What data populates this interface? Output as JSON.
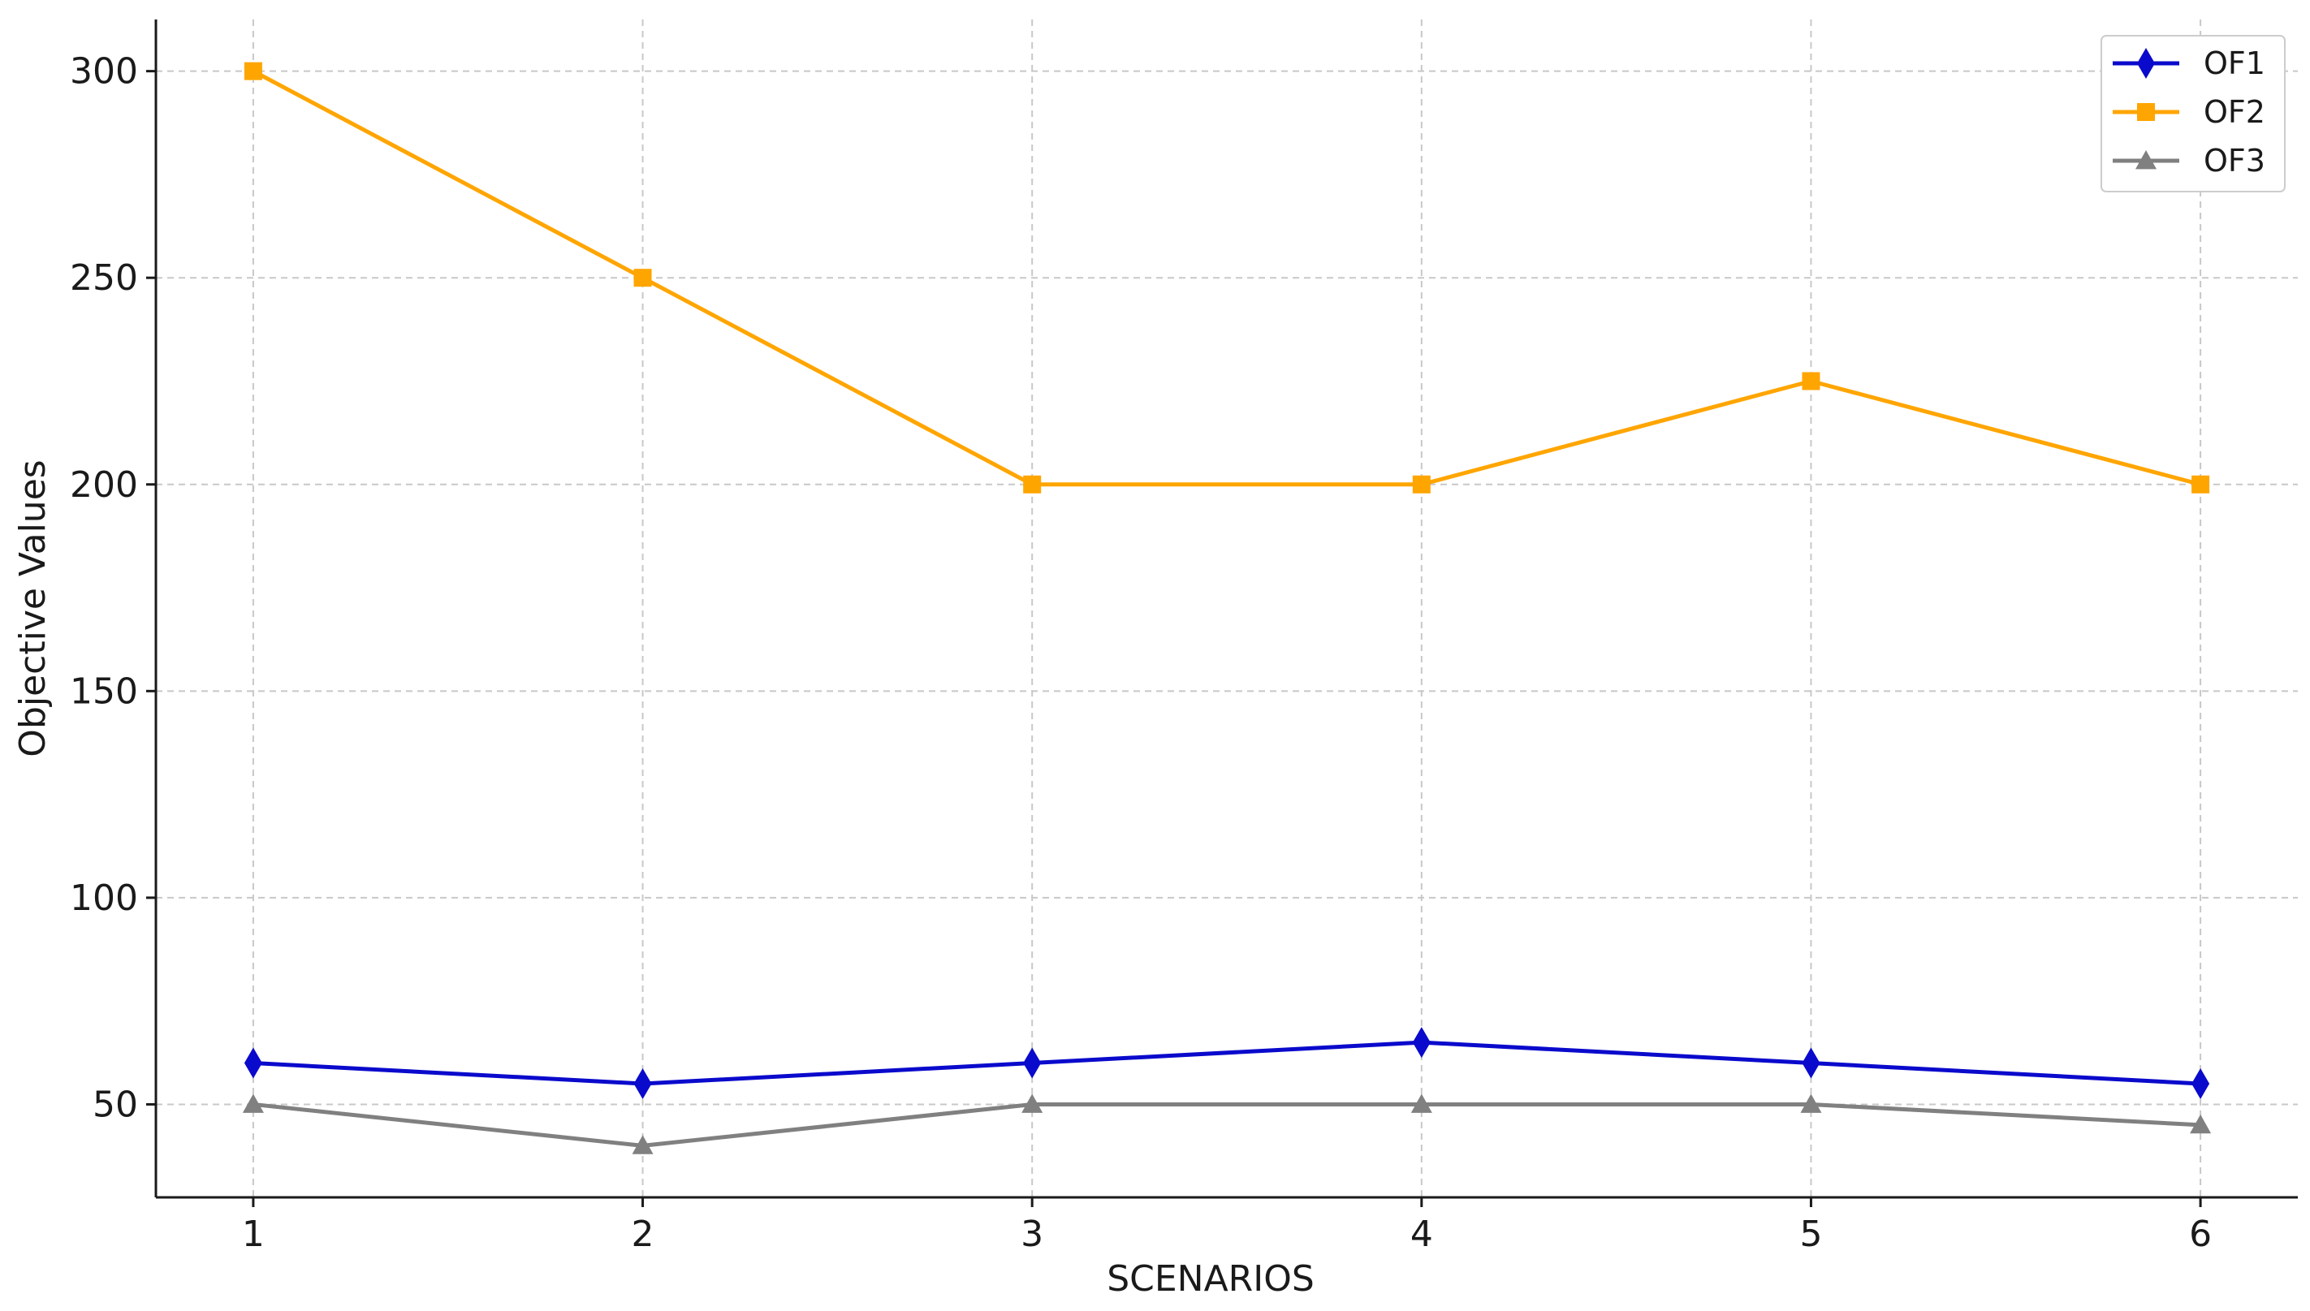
{
  "chart_data": {
    "type": "line",
    "xlabel": "SCENARIOS",
    "ylabel": "Objective Values",
    "categories": [
      "1",
      "2",
      "3",
      "4",
      "5",
      "6"
    ],
    "x": [
      1,
      2,
      3,
      4,
      5,
      6
    ],
    "xlim": [
      0.75,
      6.25
    ],
    "ylim": [
      27.5,
      312.5
    ],
    "yticks": [
      50,
      100,
      150,
      200,
      250,
      300
    ],
    "ytick_labels": [
      "50",
      "100",
      "150",
      "200",
      "250",
      "300"
    ],
    "grid": true,
    "legend_position": "top-right",
    "series": [
      {
        "name": "OF1",
        "marker": "diamond",
        "color": "#0a0acc",
        "values": [
          60,
          55,
          60,
          65,
          60,
          55
        ]
      },
      {
        "name": "OF2",
        "marker": "square",
        "color": "#ffa500",
        "values": [
          300,
          250,
          200,
          200,
          225,
          200
        ]
      },
      {
        "name": "OF3",
        "marker": "triangle",
        "color": "#808080",
        "values": [
          50,
          40,
          50,
          50,
          50,
          45
        ]
      }
    ]
  }
}
